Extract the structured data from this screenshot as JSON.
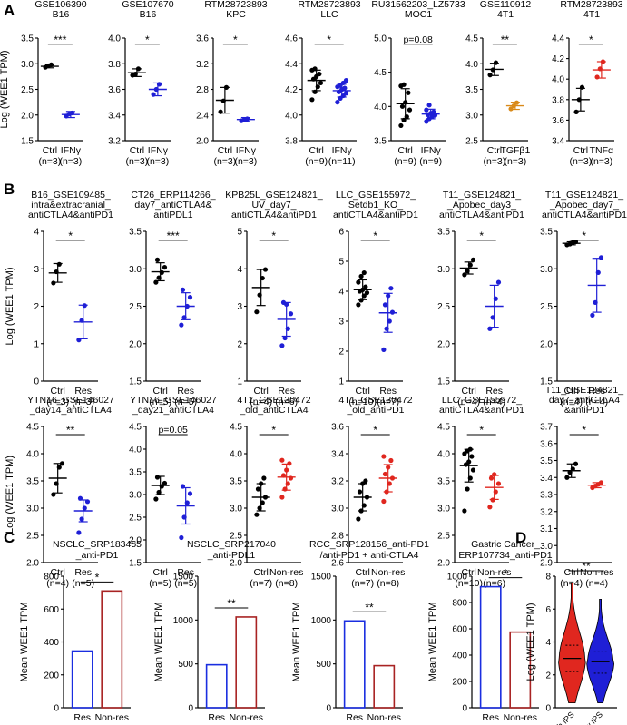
{
  "colors": {
    "black": "#000000",
    "blue": "#1f1fd6",
    "orange": "#d98a1a",
    "red": "#e0271f",
    "darkred": "#a82323",
    "violet_blue": "#1a2ee0"
  },
  "panel_labels": [
    "A",
    "B",
    "C",
    "D"
  ],
  "chart_data": [
    {
      "id": "A1",
      "type": "dotplot",
      "title1": "GSE106390",
      "title2": "B16",
      "ylabel": "Log (WEE1 TPM)",
      "ylim": [
        1.5,
        3.5
      ],
      "yticks": [
        "1.5",
        "2.0",
        "2.5",
        "3.0",
        "3.5"
      ],
      "groups": [
        {
          "label": "Ctrl",
          "n": "(n=3)",
          "color": "black",
          "values": [
            2.93,
            2.96,
            2.98
          ],
          "mean": 2.95,
          "sd": 0.03
        },
        {
          "label": "IFNγ",
          "n": "(n=3)",
          "color": "blue",
          "values": [
            1.98,
            2.02,
            2.04
          ],
          "mean": 2.01,
          "sd": 0.06
        }
      ],
      "sig": "***"
    },
    {
      "id": "A2",
      "type": "dotplot",
      "title1": "GSE107670",
      "title2": "B16",
      "ylabel": "",
      "ylim": [
        3.2,
        4.0
      ],
      "yticks": [
        "3.2",
        "3.4",
        "3.6",
        "3.8",
        "4.0"
      ],
      "groups": [
        {
          "label": "Ctrl",
          "n": "(n=3)",
          "color": "black",
          "values": [
            3.71,
            3.72,
            3.76
          ],
          "mean": 3.73,
          "sd": 0.03
        },
        {
          "label": "IFNγ",
          "n": "(n=3)",
          "color": "blue",
          "values": [
            3.56,
            3.6,
            3.64
          ],
          "mean": 3.6,
          "sd": 0.05
        }
      ],
      "sig": "*"
    },
    {
      "id": "A3",
      "type": "dotplot",
      "title1": "RTM28723893",
      "title2": "KPC",
      "ylabel": "",
      "ylim": [
        2.0,
        3.6
      ],
      "yticks": [
        "2.0",
        "2.4",
        "2.8",
        "3.2",
        "3.6"
      ],
      "groups": [
        {
          "label": "Ctrl",
          "n": "(n=3)",
          "color": "black",
          "values": [
            2.45,
            2.62,
            2.83
          ],
          "mean": 2.63,
          "sd": 0.2
        },
        {
          "label": "IFNγ",
          "n": "(n=3)",
          "color": "blue",
          "values": [
            2.31,
            2.33,
            2.34
          ],
          "mean": 2.33,
          "sd": 0.03
        }
      ],
      "sig": "*"
    },
    {
      "id": "A4",
      "type": "dotplot",
      "title1": "RTM28723893",
      "title2": "LLC",
      "ylabel": "",
      "ylim": [
        3.8,
        4.6
      ],
      "yticks": [
        "3.8",
        "4.0",
        "4.2",
        "4.4",
        "4.6"
      ],
      "groups": [
        {
          "label": "Ctrl",
          "n": "(n=9)",
          "color": "black",
          "values": [
            4.12,
            4.18,
            4.22,
            4.25,
            4.28,
            4.3,
            4.32,
            4.35,
            4.36
          ],
          "mean": 4.27,
          "sd": 0.08
        },
        {
          "label": "IFNγ",
          "n": "(n=11)",
          "color": "blue",
          "values": [
            4.1,
            4.13,
            4.15,
            4.17,
            4.18,
            4.2,
            4.21,
            4.22,
            4.23,
            4.25,
            4.27
          ],
          "mean": 4.19,
          "sd": 0.05
        }
      ],
      "sig": "*"
    },
    {
      "id": "A5",
      "type": "dotplot",
      "title1": "RU31562203_LZ5733",
      "title2": "MOC1",
      "ylabel": "",
      "ylim": [
        3.5,
        5.0
      ],
      "yticks": [
        "3.5",
        "4.0",
        "4.5",
        "5.0"
      ],
      "groups": [
        {
          "label": "Ctrl",
          "n": "(n=9)",
          "color": "black",
          "values": [
            3.72,
            3.8,
            3.85,
            3.95,
            4.0,
            4.06,
            4.2,
            4.3,
            4.32
          ],
          "mean": 4.04,
          "sd": 0.22
        },
        {
          "label": "IFNγ",
          "n": "(n=9)",
          "color": "blue",
          "values": [
            3.78,
            3.82,
            3.85,
            3.87,
            3.88,
            3.9,
            3.92,
            3.95,
            4.02
          ],
          "mean": 3.89,
          "sd": 0.07
        }
      ],
      "sig": "p=0.08"
    },
    {
      "id": "A6",
      "type": "dotplot",
      "title1": "GSE110912",
      "title2": "4T1",
      "ylabel": "",
      "ylim": [
        2.5,
        4.5
      ],
      "yticks": [
        "2.5",
        "3.0",
        "3.5",
        "4.0",
        "4.5"
      ],
      "groups": [
        {
          "label": "Ctrl",
          "n": "(n=3)",
          "color": "black",
          "values": [
            3.78,
            3.88,
            4.02
          ],
          "mean": 3.89,
          "sd": 0.12
        },
        {
          "label": "TGFβ1",
          "n": "(n=3)",
          "color": "orange",
          "values": [
            3.12,
            3.18,
            3.24
          ],
          "mean": 3.18,
          "sd": 0.07
        }
      ],
      "sig": "**"
    },
    {
      "id": "A7",
      "type": "dotplot",
      "title1": "RTM28723893",
      "title2": "4T1",
      "ylabel": "",
      "ylim": [
        3.4,
        4.4
      ],
      "yticks": [
        "3.4",
        "3.6",
        "3.8",
        "4.0",
        "4.2",
        "4.4"
      ],
      "groups": [
        {
          "label": "Ctrl",
          "n": "(n=3)",
          "color": "black",
          "values": [
            3.68,
            3.8,
            3.92
          ],
          "mean": 3.8,
          "sd": 0.11
        },
        {
          "label": "TNFα",
          "n": "(n=3)",
          "color": "red",
          "values": [
            4.02,
            4.1,
            4.17
          ],
          "mean": 4.09,
          "sd": 0.08
        }
      ],
      "sig": "*"
    },
    {
      "id": "B1",
      "type": "dotplot",
      "title1": "B16_GSE109485_",
      "title2": "intra&extracranial_",
      "title3": "antiCTLA4&antiPD1",
      "ylabel": "Log (WEE1 TPM)",
      "ylim": [
        0,
        4
      ],
      "yticks": [
        "0",
        "1",
        "2",
        "3",
        "4"
      ],
      "groups": [
        {
          "label": "Ctrl",
          "n": "(n=3)",
          "color": "black",
          "values": [
            2.62,
            2.92,
            3.12
          ],
          "mean": 2.89,
          "sd": 0.25
        },
        {
          "label": "Res",
          "n": "(n=3)",
          "color": "blue",
          "values": [
            1.1,
            1.62,
            2.02
          ],
          "mean": 1.58,
          "sd": 0.45
        }
      ],
      "sig": "*"
    },
    {
      "id": "B2",
      "type": "dotplot",
      "title1": "CT26_ERP114266_",
      "title2": "day7_antiCTLA4&",
      "title3": "antiPDL1",
      "ylabel": "",
      "ylim": [
        1.5,
        3.5
      ],
      "yticks": [
        "1.5",
        "2.0",
        "2.5",
        "3.0",
        "3.5"
      ],
      "groups": [
        {
          "label": "Ctrl",
          "n": "(n=5)",
          "color": "black",
          "values": [
            2.82,
            2.88,
            2.95,
            3.02,
            3.12
          ],
          "mean": 2.96,
          "sd": 0.12
        },
        {
          "label": "Res",
          "n": "(n=5)",
          "color": "blue",
          "values": [
            2.25,
            2.35,
            2.5,
            2.62,
            2.72
          ],
          "mean": 2.5,
          "sd": 0.18
        }
      ],
      "sig": "***"
    },
    {
      "id": "B3",
      "type": "dotplot",
      "title1": "KPB25L_GSE124821_",
      "title2": "UV_day7_",
      "title3": "antiCTLA4&antiPD1",
      "ylabel": "",
      "ylim": [
        1,
        5
      ],
      "yticks": [
        "1",
        "2",
        "3",
        "4",
        "5"
      ],
      "groups": [
        {
          "label": "Ctrl",
          "n": "(n=4)",
          "color": "black",
          "values": [
            2.85,
            3.3,
            3.75,
            3.98
          ],
          "mean": 3.5,
          "sd": 0.48
        },
        {
          "label": "Res",
          "n": "(n=6)",
          "color": "blue",
          "values": [
            1.95,
            2.15,
            2.4,
            2.8,
            3.1,
            3.05
          ],
          "mean": 2.65,
          "sd": 0.45
        }
      ],
      "sig": "*"
    },
    {
      "id": "B4",
      "type": "dotplot",
      "title1": "LLC_GSE155972_",
      "title2": "Setdb1_KO_",
      "title3": "antiCTLA4&antiPD1",
      "ylabel": "",
      "ylim": [
        1,
        6
      ],
      "yticks": [
        "1",
        "2",
        "3",
        "4",
        "5",
        "6"
      ],
      "groups": [
        {
          "label": "Ctrl",
          "n": "(n=10)",
          "color": "black",
          "values": [
            3.55,
            3.7,
            3.85,
            3.95,
            4.0,
            4.05,
            4.15,
            4.3,
            4.5,
            4.62
          ],
          "mean": 4.05,
          "sd": 0.33
        },
        {
          "label": "Res",
          "n": "(n=7)",
          "color": "blue",
          "values": [
            2.05,
            2.75,
            3.0,
            3.3,
            3.55,
            3.85,
            4.1
          ],
          "mean": 3.28,
          "sd": 0.65
        }
      ],
      "sig": "*"
    },
    {
      "id": "B5",
      "type": "dotplot",
      "title1": "T11_GSE124821_",
      "title2": "_Apobec_day3_",
      "title3": "antiCTLA4&antiPD1",
      "ylabel": "",
      "ylim": [
        1.5,
        3.5
      ],
      "yticks": [
        "1.5",
        "2.0",
        "2.5",
        "3.0",
        "3.5"
      ],
      "groups": [
        {
          "label": "Ctrl",
          "n": "(n=4)",
          "color": "black",
          "values": [
            2.92,
            2.97,
            3.05,
            3.12
          ],
          "mean": 3.01,
          "sd": 0.08
        },
        {
          "label": "Res",
          "n": "(n=4)",
          "color": "blue",
          "values": [
            2.2,
            2.35,
            2.6,
            2.82
          ],
          "mean": 2.5,
          "sd": 0.28
        }
      ],
      "sig": "*"
    },
    {
      "id": "B6",
      "type": "dotplot",
      "title1": "T11_GSE124821_",
      "title2": "_Apobec_day7_",
      "title3": "antiCTLA4&antiPD1",
      "ylabel": "",
      "ylim": [
        1.5,
        3.5
      ],
      "yticks": [
        "1.5",
        "2.0",
        "2.5",
        "3.0",
        "3.5"
      ],
      "groups": [
        {
          "label": "Ctrl",
          "n": "(n=4)",
          "color": "black",
          "values": [
            3.32,
            3.33,
            3.35,
            3.36
          ],
          "mean": 3.34,
          "sd": 0.02
        },
        {
          "label": "Res",
          "n": "(n=4)",
          "color": "blue",
          "values": [
            2.38,
            2.55,
            2.95,
            3.15
          ],
          "mean": 2.78,
          "sd": 0.36
        }
      ],
      "sig": "*"
    },
    {
      "id": "B7",
      "type": "dotplot",
      "title1": "YTN16_GSE146027",
      "title2": "_day14_antiCTLA4",
      "ylabel": "Log (WEE1 TPM)",
      "ylim": [
        2.0,
        4.5
      ],
      "yticks": [
        "2.0",
        "2.5",
        "3.0",
        "3.5",
        "4.0",
        "4.5"
      ],
      "groups": [
        {
          "label": "Ctrl",
          "n": "(n=4)",
          "color": "black",
          "values": [
            3.25,
            3.45,
            3.75,
            3.82
          ],
          "mean": 3.55,
          "sd": 0.27
        },
        {
          "label": "Res",
          "n": "(n=5)",
          "color": "blue",
          "values": [
            2.55,
            2.8,
            3.0,
            3.12,
            3.18
          ],
          "mean": 2.95,
          "sd": 0.2
        }
      ],
      "sig": "**"
    },
    {
      "id": "B8",
      "type": "dotplot",
      "title1": "YTN16_GSE146027",
      "title2": "_day21_antiCTLA4",
      "ylabel": "",
      "ylim": [
        1.5,
        4.5
      ],
      "yticks": [
        "1.5",
        "2.0",
        "2.5",
        "3.0",
        "3.5",
        "4.0",
        "4.5"
      ],
      "groups": [
        {
          "label": "Ctrl",
          "n": "(n=5)",
          "color": "black",
          "values": [
            2.9,
            3.05,
            3.18,
            3.25,
            3.38
          ],
          "mean": 3.2,
          "sd": 0.2
        },
        {
          "label": "Res",
          "n": "(n=5)",
          "color": "blue",
          "values": [
            2.05,
            2.5,
            2.82,
            3.02,
            3.18
          ],
          "mean": 2.75,
          "sd": 0.4
        }
      ],
      "sig": "p=0.05"
    },
    {
      "id": "B9",
      "type": "dotplot",
      "title1": "4T1_GSE130472",
      "title2": "_old_antiCTLA4",
      "ylabel": "",
      "ylim": [
        2.0,
        4.5
      ],
      "yticks": [
        "2.0",
        "2.5",
        "3.0",
        "3.5",
        "4.0",
        "4.5"
      ],
      "groups": [
        {
          "label": "Ctrl",
          "n": "(n=7)",
          "color": "black",
          "values": [
            2.88,
            3.0,
            3.1,
            3.2,
            3.35,
            3.45,
            3.55
          ],
          "mean": 3.2,
          "sd": 0.25
        },
        {
          "label": "Non-res",
          "n": "(n=8)",
          "color": "red",
          "values": [
            3.2,
            3.35,
            3.45,
            3.55,
            3.6,
            3.7,
            3.82,
            3.88
          ],
          "mean": 3.57,
          "sd": 0.24
        }
      ],
      "sig": "*"
    },
    {
      "id": "B10",
      "type": "dotplot",
      "title1": "4T1_GSE130472",
      "title2": "_old_antiPD1",
      "ylabel": "",
      "ylim": [
        2.6,
        3.6
      ],
      "yticks": [
        "2.6",
        "2.8",
        "3.0",
        "3.2",
        "3.4",
        "3.6"
      ],
      "groups": [
        {
          "label": "Ctrl",
          "n": "(n=7)",
          "color": "black",
          "values": [
            2.92,
            2.98,
            3.02,
            3.08,
            3.12,
            3.18,
            3.2
          ],
          "mean": 3.08,
          "sd": 0.1
        },
        {
          "label": "Non-res",
          "n": "(n=8)",
          "color": "red",
          "values": [
            3.05,
            3.12,
            3.18,
            3.22,
            3.25,
            3.3,
            3.35,
            3.38
          ],
          "mean": 3.22,
          "sd": 0.1
        }
      ],
      "sig": "*"
    },
    {
      "id": "B11",
      "type": "dotplot",
      "title1": "LLC_GSE155972_",
      "title2": "antiCTLA4&antiPD1",
      "ylabel": "",
      "ylim": [
        2.0,
        4.5
      ],
      "yticks": [
        "2.0",
        "2.5",
        "3.0",
        "3.5",
        "4.0",
        "4.5"
      ],
      "groups": [
        {
          "label": "Ctrl",
          "n": "(n=10)",
          "color": "black",
          "values": [
            2.95,
            3.35,
            3.55,
            3.7,
            3.8,
            3.85,
            3.95,
            4.0,
            4.05,
            4.08
          ],
          "mean": 3.78,
          "sd": 0.3
        },
        {
          "label": "Non-res",
          "n": "(n=6)",
          "color": "red",
          "values": [
            3.02,
            3.15,
            3.3,
            3.45,
            3.55,
            3.62
          ],
          "mean": 3.38,
          "sd": 0.22
        }
      ],
      "sig": "*"
    },
    {
      "id": "B12",
      "type": "dotplot",
      "title1": "T11_GSE124821_",
      "title2": "day7_antiCTLA4",
      "title3": "&antiPD1",
      "ylabel": "",
      "ylim": [
        2.9,
        3.7
      ],
      "yticks": [
        "2.9",
        "3.0",
        "3.1",
        "3.2",
        "3.3",
        "3.4",
        "3.5",
        "3.6",
        "3.7"
      ],
      "groups": [
        {
          "label": "Ctrl",
          "n": "(n=4)",
          "color": "black",
          "values": [
            3.4,
            3.43,
            3.45,
            3.48
          ],
          "mean": 3.44,
          "sd": 0.04
        },
        {
          "label": "Non-res",
          "n": "(n=4)",
          "color": "red",
          "values": [
            3.34,
            3.35,
            3.36,
            3.37
          ],
          "mean": 3.355,
          "sd": 0.015
        }
      ],
      "sig": "*"
    },
    {
      "id": "C1",
      "type": "bar",
      "title1": "NSCLC_SRP183455",
      "title2": "_anti-PD1",
      "ylabel": "Mean WEE1 TPM",
      "ylim": [
        0,
        800
      ],
      "yticks": [
        "0",
        "200",
        "400",
        "600",
        "800"
      ],
      "categories": [
        "Res",
        "Non-res"
      ],
      "values": [
        345,
        710
      ],
      "colors": [
        "violet_blue",
        "darkred"
      ],
      "sig": "*"
    },
    {
      "id": "C2",
      "type": "bar",
      "title1": "NSCLC_SRP217040",
      "title2": "_anti-PDL1",
      "ylabel": "Mean WEE1 TPM",
      "ylim": [
        0,
        1500
      ],
      "yticks": [
        "0",
        "500",
        "1000",
        "1500"
      ],
      "categories": [
        "Res",
        "Non-res"
      ],
      "values": [
        490,
        1035
      ],
      "colors": [
        "violet_blue",
        "darkred"
      ],
      "sig": "**"
    },
    {
      "id": "C3",
      "type": "bar",
      "title1": "RCC_SRP128156_anti-PD1",
      "title2": "/anti-PD1 + anti-CTLA4",
      "ylabel": "Mean WEE1 TPM",
      "ylim": [
        0,
        1500
      ],
      "yticks": [
        "0",
        "500",
        "1000",
        "1500"
      ],
      "categories": [
        "Res",
        "Non-res"
      ],
      "values": [
        990,
        480
      ],
      "colors": [
        "violet_blue",
        "darkred"
      ],
      "sig": "**"
    },
    {
      "id": "C4",
      "type": "bar",
      "title1": "Gastric Cancer_",
      "title2": "ERP107734_anti-PD1",
      "ylabel": "Mean WEE1 TPM",
      "ylim": [
        0,
        1000
      ],
      "yticks": [
        "0",
        "200",
        "400",
        "600",
        "800",
        "1000"
      ],
      "categories": [
        "Res",
        "Non-res"
      ],
      "values": [
        920,
        575
      ],
      "colors": [
        "violet_blue",
        "darkred"
      ],
      "sig": "*"
    },
    {
      "id": "D1",
      "type": "violin",
      "ylabel": "Log (WEE1 TPM)",
      "ylim": [
        0,
        8
      ],
      "yticks": [
        "0",
        "2",
        "4",
        "6",
        "8"
      ],
      "groups": [
        {
          "label": "High IPS",
          "color": "red",
          "min": 0.3,
          "max": 7.6,
          "median": 3.0,
          "q1": 2.2,
          "q3": 3.8
        },
        {
          "label": "Low IPS",
          "color": "blue",
          "min": 0.3,
          "max": 6.6,
          "median": 2.8,
          "q1": 2.1,
          "q3": 3.4
        }
      ],
      "sig": "**"
    }
  ]
}
